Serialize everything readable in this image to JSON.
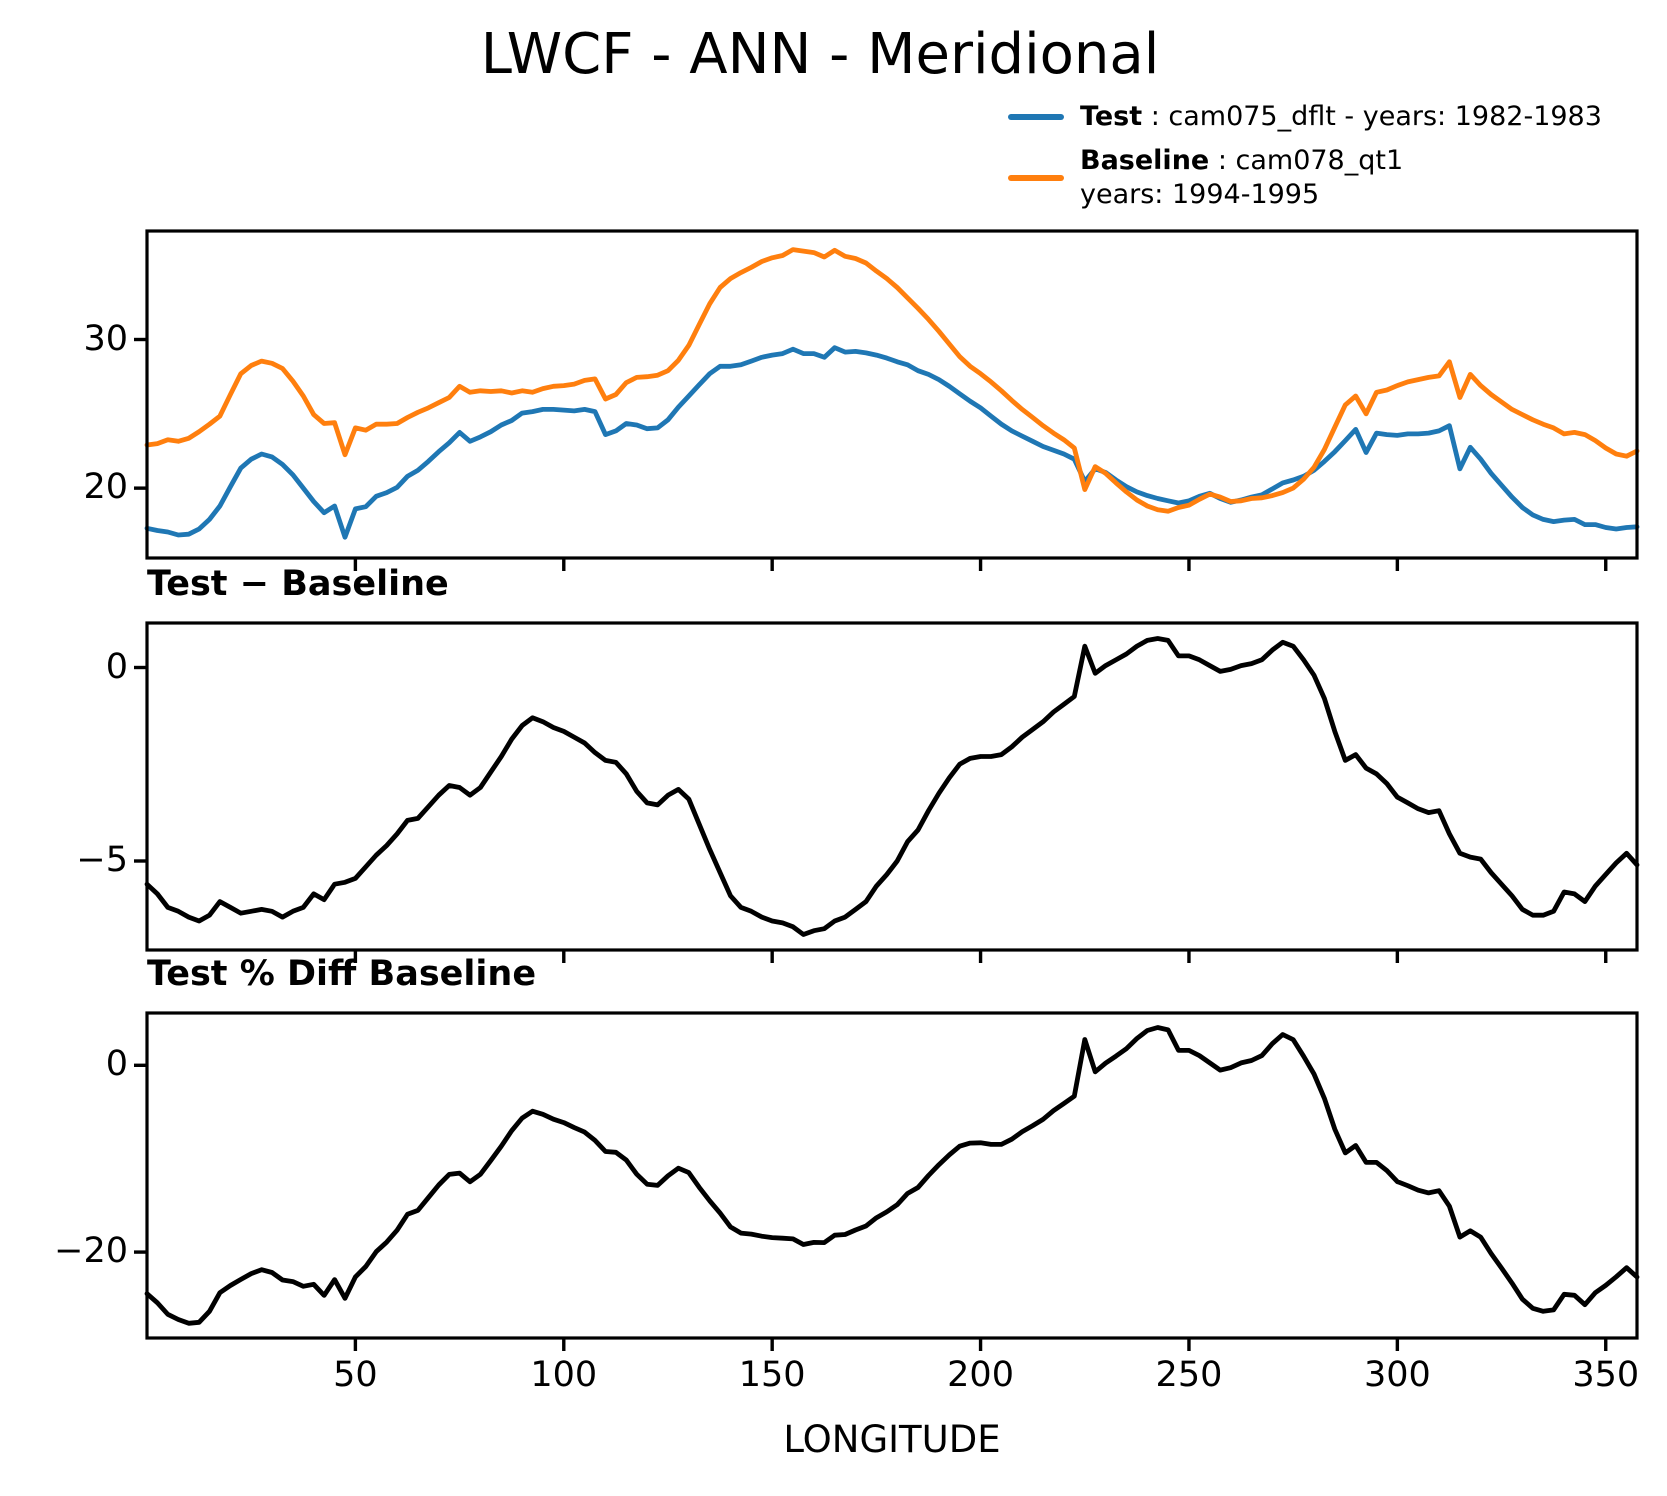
{
  "title": "LWCF - ANN - Meridional",
  "legend": {
    "test": {
      "bold": "Test",
      "rest": " : cam075_dflt - years: 1982-1983"
    },
    "baseline": {
      "bold": "Baseline",
      "rest": " : cam078_qt1",
      "line2": "years: 1994-1995"
    }
  },
  "colors": {
    "test": "#1f77b4",
    "baseline": "#ff7f0e",
    "diff": "#000000",
    "axes": "#000000"
  },
  "xlabel": "LONGITUDE",
  "chart_data": {
    "type": "line",
    "title": "LWCF - ANN - Meridional",
    "xlabel": "LONGITUDE",
    "grid": false,
    "legend_position": "upper right",
    "xlim": [
      0,
      357.5
    ],
    "x_ticks": [
      50,
      100,
      150,
      200,
      250,
      300,
      350
    ],
    "x": [
      0,
      2.5,
      5,
      7.5,
      10,
      12.5,
      15,
      17.5,
      20,
      22.5,
      25,
      27.5,
      30,
      32.5,
      35,
      37.5,
      40,
      42.5,
      45,
      47.5,
      50,
      52.5,
      55,
      57.5,
      60,
      62.5,
      65,
      67.5,
      70,
      72.5,
      75,
      77.5,
      80,
      82.5,
      85,
      87.5,
      90,
      92.5,
      95,
      97.5,
      100,
      102.5,
      105,
      107.5,
      110,
      112.5,
      115,
      117.5,
      120,
      122.5,
      125,
      127.5,
      130,
      132.5,
      135,
      137.5,
      140,
      142.5,
      145,
      147.5,
      150,
      152.5,
      155,
      157.5,
      160,
      162.5,
      165,
      167.5,
      170,
      172.5,
      175,
      177.5,
      180,
      182.5,
      185,
      187.5,
      190,
      192.5,
      195,
      197.5,
      200,
      202.5,
      205,
      207.5,
      210,
      212.5,
      215,
      217.5,
      220,
      222.5,
      225,
      227.5,
      230,
      232.5,
      235,
      237.5,
      240,
      242.5,
      245,
      247.5,
      250,
      252.5,
      255,
      257.5,
      260,
      262.5,
      265,
      267.5,
      270,
      272.5,
      275,
      277.5,
      280,
      282.5,
      285,
      287.5,
      290,
      292.5,
      295,
      297.5,
      300,
      302.5,
      305,
      307.5,
      310,
      312.5,
      315,
      317.5,
      320,
      322.5,
      325,
      327.5,
      330,
      332.5,
      335,
      337.5,
      340,
      342.5,
      345,
      347.5,
      350,
      352.5,
      355,
      357.5
    ],
    "series": [
      {
        "name": "Test",
        "label": "Test : cam075_dflt - years: 1982-1983",
        "values": [
          17.3,
          17.15,
          17.05,
          16.85,
          16.9,
          17.25,
          17.9,
          18.8,
          20.1,
          21.35,
          21.95,
          22.3,
          22.1,
          21.6,
          20.9,
          20.0,
          19.1,
          18.35,
          18.8,
          16.7,
          18.6,
          18.75,
          19.45,
          19.7,
          20.05,
          20.8,
          21.2,
          21.8,
          22.45,
          23.05,
          23.75,
          23.15,
          23.45,
          23.8,
          24.25,
          24.55,
          25.05,
          25.15,
          25.3,
          25.3,
          25.25,
          25.2,
          25.3,
          25.15,
          23.6,
          23.85,
          24.35,
          24.25,
          24.0,
          24.05,
          24.6,
          25.45,
          26.2,
          26.95,
          27.7,
          28.2,
          28.2,
          28.3,
          28.55,
          28.8,
          28.95,
          29.05,
          29.35,
          29.05,
          29.05,
          28.8,
          29.45,
          29.15,
          29.2,
          29.1,
          28.95,
          28.75,
          28.5,
          28.3,
          27.9,
          27.65,
          27.3,
          26.85,
          26.35,
          25.85,
          25.4,
          24.85,
          24.3,
          23.85,
          23.5,
          23.15,
          22.8,
          22.55,
          22.3,
          21.95,
          20.45,
          21.3,
          21.05,
          20.55,
          20.1,
          19.75,
          19.5,
          19.3,
          19.15,
          19.0,
          19.15,
          19.45,
          19.65,
          19.3,
          19.05,
          19.2,
          19.4,
          19.55,
          19.95,
          20.35,
          20.55,
          20.8,
          21.2,
          21.8,
          22.45,
          23.2,
          23.95,
          22.4,
          23.7,
          23.6,
          23.55,
          23.65,
          23.65,
          23.7,
          23.85,
          24.2,
          21.3,
          22.75,
          21.95,
          21.0,
          20.2,
          19.4,
          18.7,
          18.2,
          17.9,
          17.75,
          17.85,
          17.9,
          17.55,
          17.55,
          17.35,
          17.25,
          17.35,
          17.4
        ]
      },
      {
        "name": "Baseline",
        "label": "Baseline : cam078_qt1 years: 1994-1995",
        "values": [
          22.9,
          23.0,
          23.25,
          23.15,
          23.35,
          23.8,
          24.3,
          24.85,
          26.3,
          27.7,
          28.25,
          28.55,
          28.4,
          28.05,
          27.2,
          26.2,
          24.95,
          24.35,
          24.4,
          22.25,
          24.05,
          23.9,
          24.3,
          24.3,
          24.35,
          24.75,
          25.1,
          25.4,
          25.75,
          26.1,
          26.85,
          26.45,
          26.55,
          26.5,
          26.55,
          26.4,
          26.55,
          26.45,
          26.7,
          26.85,
          26.9,
          27.0,
          27.25,
          27.35,
          26.0,
          26.3,
          27.1,
          27.45,
          27.5,
          27.6,
          27.9,
          28.6,
          29.6,
          31.0,
          32.4,
          33.5,
          34.1,
          34.5,
          34.85,
          35.25,
          35.5,
          35.65,
          36.05,
          35.95,
          35.85,
          35.55,
          36.0,
          35.6,
          35.45,
          35.15,
          34.6,
          34.1,
          33.5,
          32.8,
          32.1,
          31.35,
          30.55,
          29.7,
          28.85,
          28.2,
          27.7,
          27.15,
          26.55,
          25.9,
          25.3,
          24.75,
          24.2,
          23.7,
          23.25,
          22.7,
          19.9,
          21.45,
          21.0,
          20.35,
          19.75,
          19.2,
          18.8,
          18.55,
          18.45,
          18.7,
          18.85,
          19.25,
          19.6,
          19.4,
          19.1,
          19.15,
          19.3,
          19.35,
          19.5,
          19.7,
          20.0,
          20.6,
          21.4,
          22.6,
          24.1,
          25.6,
          26.2,
          25.0,
          26.45,
          26.6,
          26.9,
          27.15,
          27.3,
          27.45,
          27.55,
          28.5,
          26.1,
          27.65,
          26.9,
          26.3,
          25.8,
          25.3,
          24.95,
          24.6,
          24.3,
          24.05,
          23.65,
          23.75,
          23.6,
          23.2,
          22.7,
          22.3,
          22.15,
          22.5
        ]
      }
    ],
    "panels": [
      {
        "id": "top",
        "title": "",
        "ylabel": "",
        "ylim": [
          15.3,
          37.3
        ],
        "yticks": [
          30,
          20
        ],
        "content": "Test and Baseline series"
      },
      {
        "id": "diff",
        "title": "Test − Baseline",
        "ylabel": "",
        "ylim": [
          -7.3,
          1.15
        ],
        "yticks": [
          0,
          -5
        ],
        "content": "Test minus Baseline"
      },
      {
        "id": "pct",
        "title": "Test % Diff Baseline",
        "ylabel": "",
        "ylim": [
          -29.2,
          5.6
        ],
        "yticks": [
          0,
          -20
        ],
        "content": "Percent difference (Test-Baseline)/Baseline*100"
      }
    ]
  }
}
